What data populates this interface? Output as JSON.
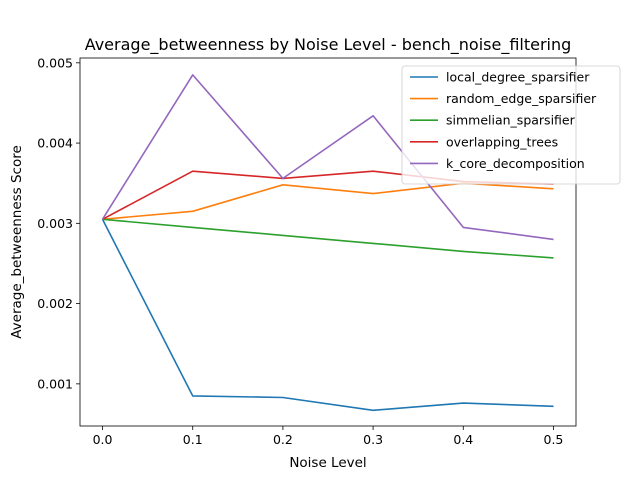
{
  "chart_data": {
    "type": "line",
    "title": "Average_betweenness by Noise Level - bench_noise_filtering",
    "xlabel": "Noise Level",
    "ylabel": "Average_betweenness Score",
    "x": [
      0.0,
      0.1,
      0.2,
      0.3,
      0.4,
      0.5
    ],
    "x_ticks": [
      "0.0",
      "0.1",
      "0.2",
      "0.3",
      "0.4",
      "0.5"
    ],
    "y_ticks": [
      0.001,
      0.002,
      0.003,
      0.004,
      0.005
    ],
    "y_tick_labels": [
      "0.001",
      "0.002",
      "0.003",
      "0.004",
      "0.005"
    ],
    "xlim": [
      -0.025,
      0.525
    ],
    "ylim": [
      0.000475,
      0.00506
    ],
    "grid": false,
    "legend_position": "top-right",
    "series": [
      {
        "name": "local_degree_sparsifier",
        "color": "#1f77b4",
        "values": [
          0.00305,
          0.00085,
          0.00083,
          0.00067,
          0.00076,
          0.00072
        ]
      },
      {
        "name": "random_edge_sparsifier",
        "color": "#ff7f0e",
        "values": [
          0.00305,
          0.00315,
          0.00348,
          0.00337,
          0.0035,
          0.00343
        ]
      },
      {
        "name": "simmelian_sparsifier",
        "color": "#2ca02c",
        "values": [
          0.00305,
          0.00295,
          0.00285,
          0.00275,
          0.00265,
          0.00257
        ]
      },
      {
        "name": "overlapping_trees",
        "color": "#d62728",
        "values": [
          0.00305,
          0.00365,
          0.00356,
          0.00365,
          0.00352,
          0.00349
        ]
      },
      {
        "name": "k_core_decomposition",
        "color": "#9467bd",
        "values": [
          0.00305,
          0.00485,
          0.00356,
          0.00434,
          0.00295,
          0.0028
        ]
      }
    ]
  }
}
